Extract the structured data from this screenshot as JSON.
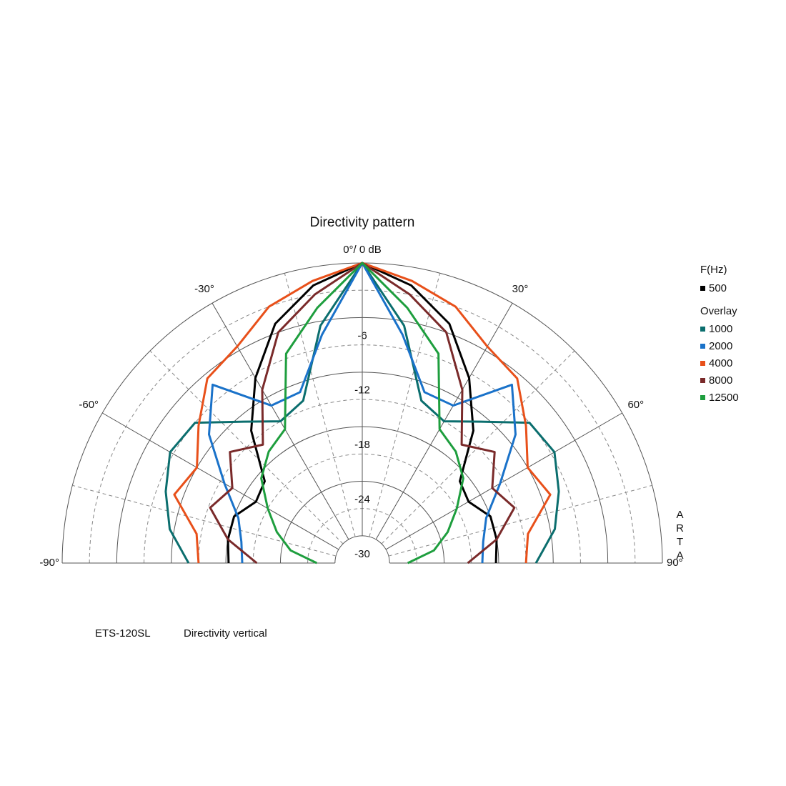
{
  "chart_data": {
    "type": "polar",
    "title": "Directivity pattern",
    "theta": [
      -90,
      -80,
      -70,
      -60,
      -50,
      -40,
      -30,
      -20,
      -10,
      0,
      10,
      20,
      30,
      40,
      50,
      60,
      70,
      80,
      90
    ],
    "rlim": [
      -33,
      0
    ],
    "rticks": [
      -30,
      -24,
      -18,
      -12,
      -6
    ],
    "rminor": [
      -27,
      -21,
      -15,
      -9,
      -3
    ],
    "thetaticks": [
      {
        "value": -90,
        "label": "-90°"
      },
      {
        "value": -60,
        "label": "-60°"
      },
      {
        "value": -30,
        "label": "-30°"
      },
      {
        "value": 0,
        "label": "0°/ 0 dB"
      },
      {
        "value": 30,
        "label": "30°"
      },
      {
        "value": 60,
        "label": "60°"
      },
      {
        "value": 90,
        "label": "90°"
      }
    ],
    "thetaminor": [
      -75,
      -45,
      -15,
      15,
      45,
      75
    ],
    "legend_title": "F(Hz)",
    "overlay_label": "Overlay",
    "series": [
      {
        "name": "500",
        "color": "#000000",
        "values": [
          -18.3,
          -18,
          -18,
          -19.5,
          -19,
          -14,
          -9.5,
          -5,
          -2,
          0,
          -2,
          -5,
          -9.5,
          -14,
          -19,
          -19.5,
          -18,
          -18,
          -18.3
        ]
      },
      {
        "name": "1000",
        "color": "#0b6e6e",
        "values": [
          -13.9,
          -11.5,
          -10,
          -8.6,
          -9,
          -12.7,
          -15,
          -14,
          -6.5,
          0,
          -6.5,
          -14,
          -15,
          -12.7,
          -9,
          -8.6,
          -10,
          -11.5,
          -13.9
        ]
      },
      {
        "name": "2000",
        "color": "#1a72c9",
        "values": [
          -19.8,
          -19.5,
          -18.5,
          -15.5,
          -11,
          -7.4,
          -13,
          -13,
          -7.5,
          0,
          -7.5,
          -13,
          -13,
          -7.4,
          -11,
          -15.5,
          -18.5,
          -19.5,
          -19.8
        ]
      },
      {
        "name": "4000",
        "color": "#e8501a",
        "values": [
          -15,
          -14.5,
          -11,
          -12,
          -9.5,
          -6.5,
          -5.5,
          -3,
          -1.5,
          0,
          -1.5,
          -3,
          -5.5,
          -6.5,
          -9.5,
          -12,
          -11,
          -14.5,
          -15
        ]
      },
      {
        "name": "8000",
        "color": "#7a2a2a",
        "values": [
          -21.4,
          -18,
          -15.2,
          -16.5,
          -14,
          -16,
          -11,
          -6,
          -3,
          0,
          -3,
          -6,
          -11,
          -16,
          -14,
          -16.5,
          -15.2,
          -18,
          -21.4
        ]
      },
      {
        "name": "12500",
        "color": "#1e9e3e",
        "values": [
          -28,
          -25,
          -23,
          -21,
          -18.5,
          -17,
          -16,
          -8.5,
          -4.5,
          0,
          -4.5,
          -8.5,
          -16,
          -17,
          -18.5,
          -21,
          -23,
          -25,
          -28
        ]
      }
    ],
    "watermark": "ARTA",
    "footer": [
      "ETS-120SL",
      "Directivity vertical"
    ]
  }
}
